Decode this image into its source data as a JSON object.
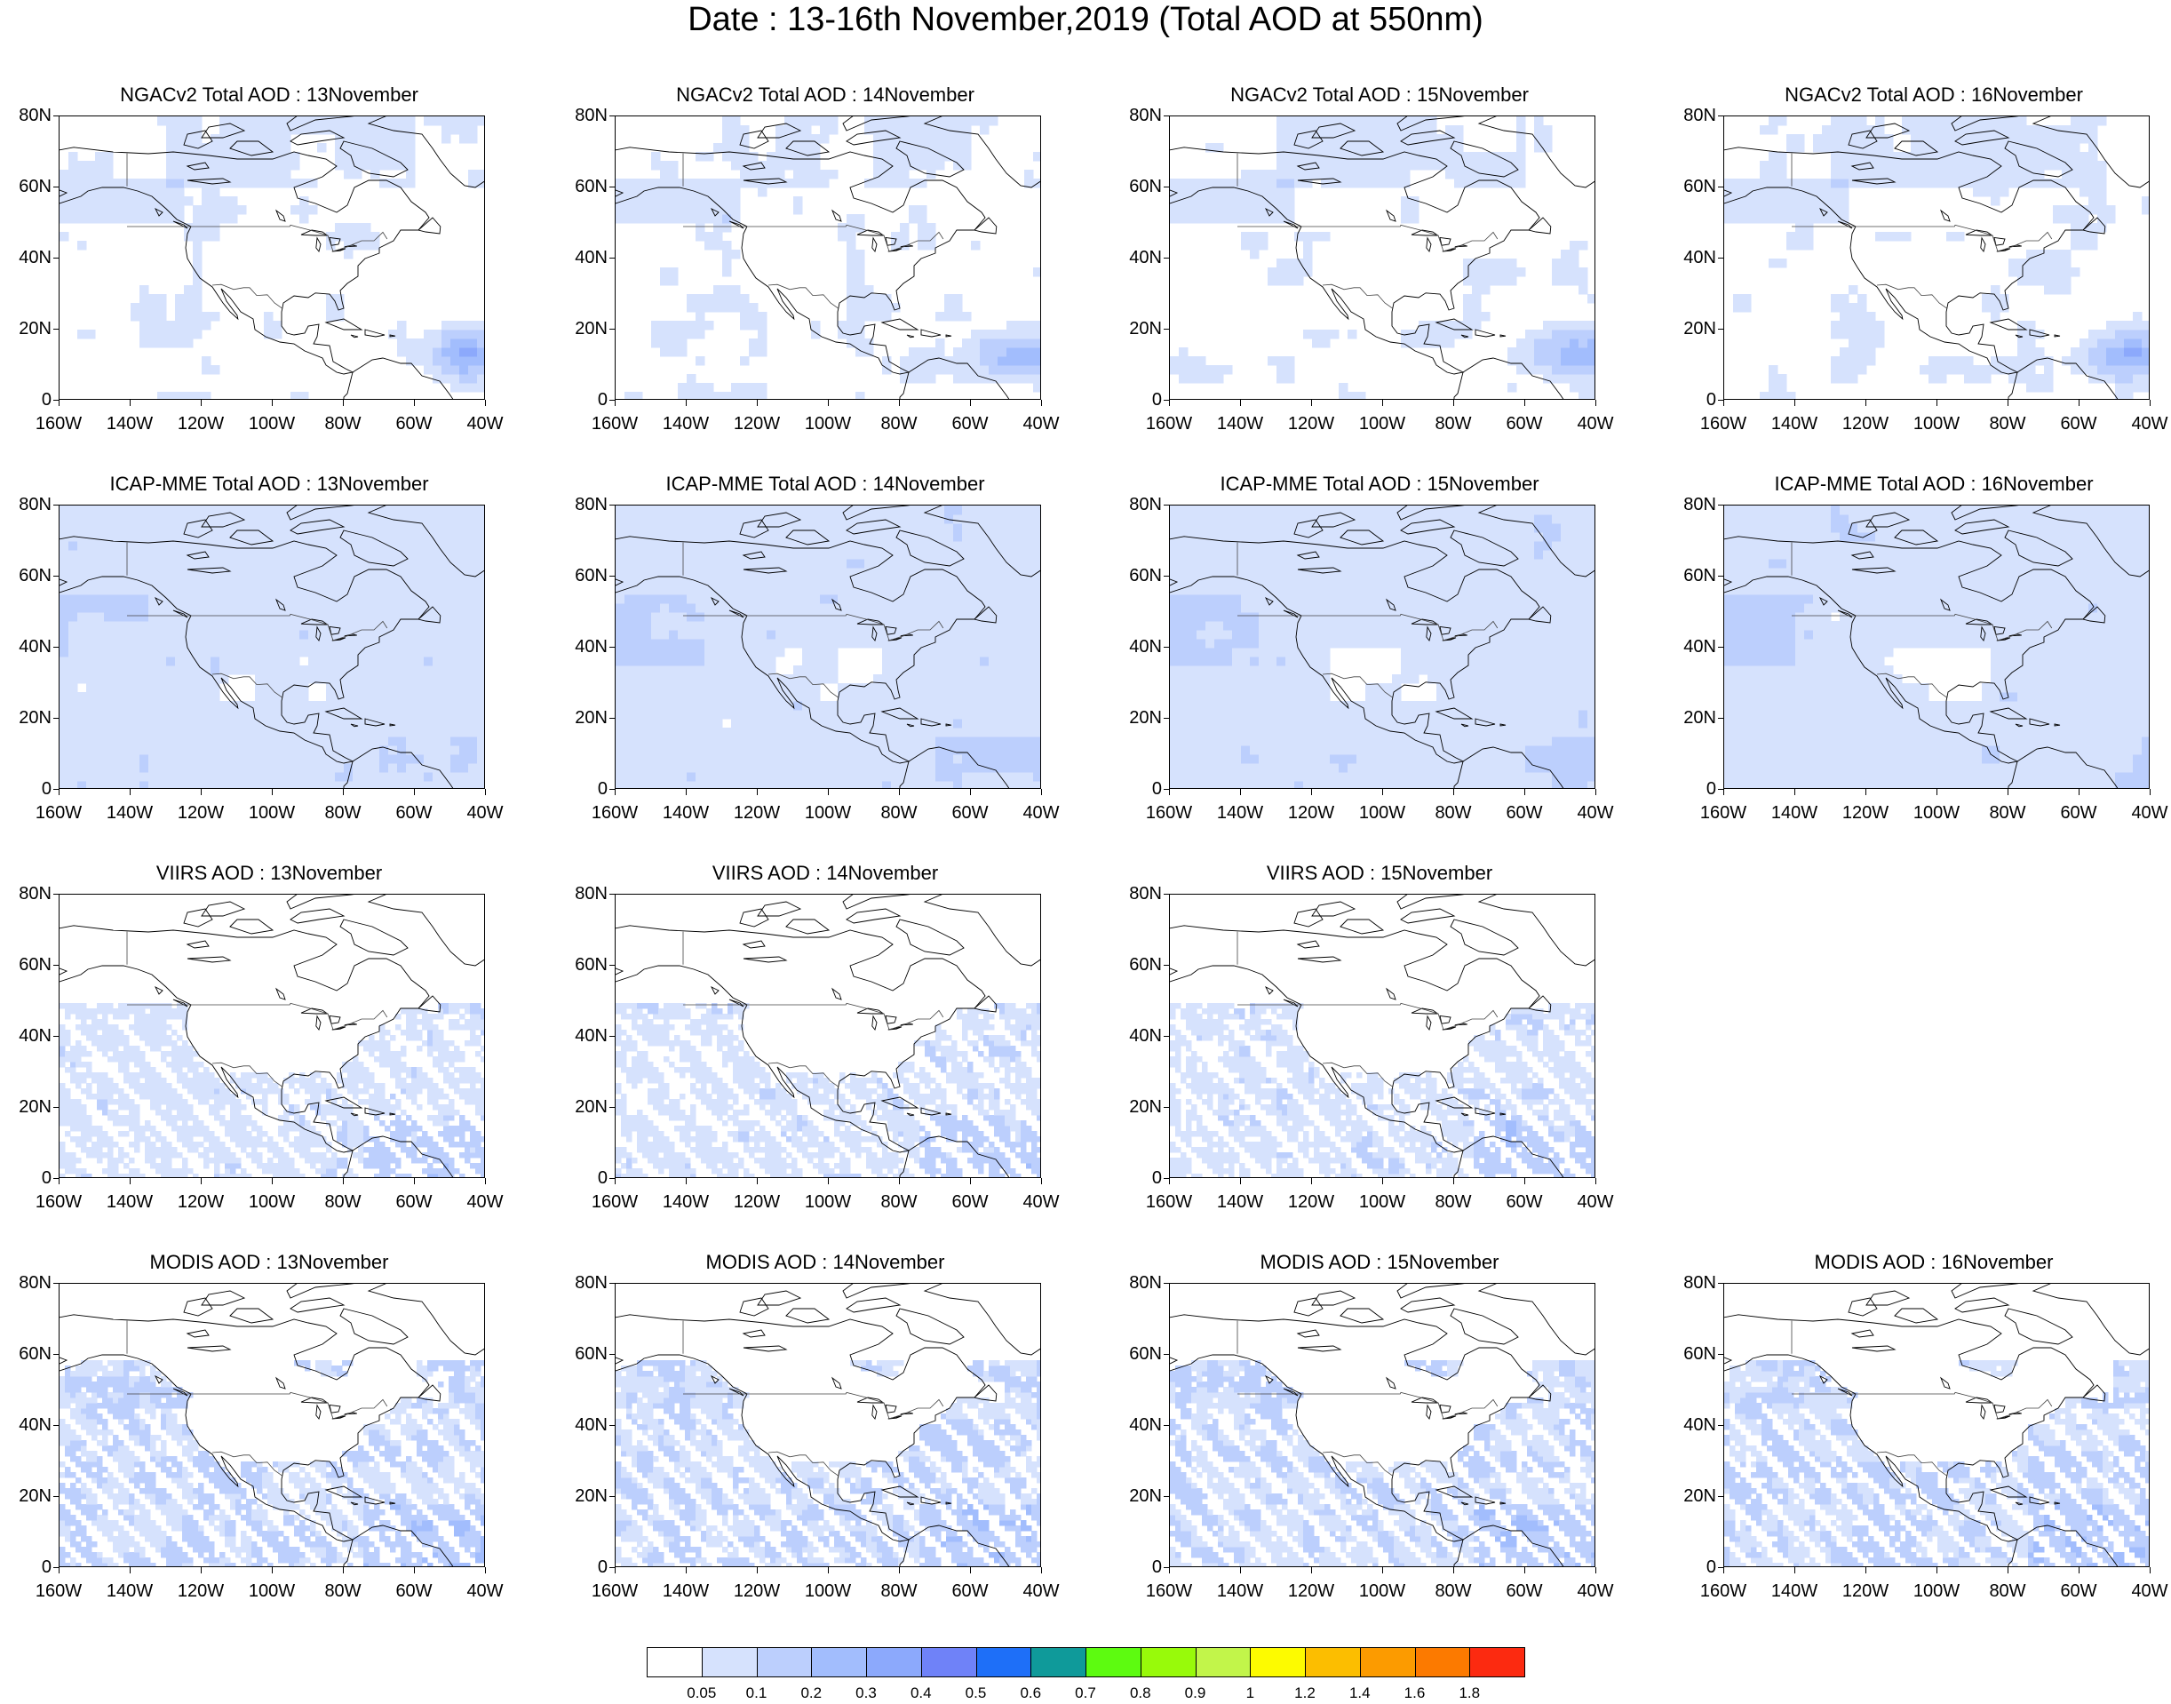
{
  "title": "Date : 13-16th November,2019 (Total AOD at 550nm)",
  "lat_ticks": [
    "80N",
    "60N",
    "40N",
    "20N",
    "0"
  ],
  "lon_ticks": [
    "160W",
    "140W",
    "120W",
    "100W",
    "80W",
    "60W",
    "40W"
  ],
  "rows": [
    {
      "panels": [
        {
          "title": "NGACv2 Total AOD : 13November",
          "type": "model",
          "plume": "strong"
        },
        {
          "title": "NGACv2 Total AOD : 14November",
          "type": "model",
          "plume": "strong"
        },
        {
          "title": "NGACv2 Total AOD : 15November",
          "type": "model",
          "plume": "strong"
        },
        {
          "title": "NGACv2 Total AOD : 16November",
          "type": "model",
          "plume": "strong"
        }
      ]
    },
    {
      "panels": [
        {
          "title": "ICAP-MME Total AOD : 13November",
          "type": "ensemble",
          "plume": "weak"
        },
        {
          "title": "ICAP-MME Total AOD : 14November",
          "type": "ensemble",
          "plume": "weak"
        },
        {
          "title": "ICAP-MME Total AOD : 15November",
          "type": "ensemble",
          "plume": "weak"
        },
        {
          "title": "ICAP-MME Total AOD : 16November",
          "type": "ensemble",
          "plume": "weak"
        }
      ]
    },
    {
      "panels": [
        {
          "title": "VIIRS AOD : 13November",
          "type": "viirs",
          "plume": "none"
        },
        {
          "title": "VIIRS AOD : 14November",
          "type": "viirs",
          "plume": "none"
        },
        {
          "title": "VIIRS AOD : 15November",
          "type": "viirs",
          "plume": "none"
        },
        null
      ]
    },
    {
      "panels": [
        {
          "title": "MODIS AOD : 13November",
          "type": "modis",
          "plume": "none"
        },
        {
          "title": "MODIS AOD : 14November",
          "type": "modis",
          "plume": "none"
        },
        {
          "title": "MODIS AOD : 15November",
          "type": "modis",
          "plume": "none"
        },
        {
          "title": "MODIS AOD : 16November",
          "type": "modis",
          "plume": "none"
        }
      ]
    }
  ],
  "colorbar": {
    "colors": [
      "#ffffff",
      "#d6e2fd",
      "#bccffd",
      "#a2bdfd",
      "#8ca9fc",
      "#6f82f8",
      "#1e6ff8",
      "#0f9a9a",
      "#5dfb10",
      "#98fa0a",
      "#c2f54a",
      "#fdfb00",
      "#fcbe00",
      "#fc9b00",
      "#fc7a00",
      "#fc2a10"
    ],
    "labels": [
      "0.05",
      "0.1",
      "0.2",
      "0.3",
      "0.4",
      "0.5",
      "0.6",
      "0.7",
      "0.8",
      "0.9",
      "1",
      "1.2",
      "1.4",
      "1.6",
      "1.8"
    ]
  }
}
